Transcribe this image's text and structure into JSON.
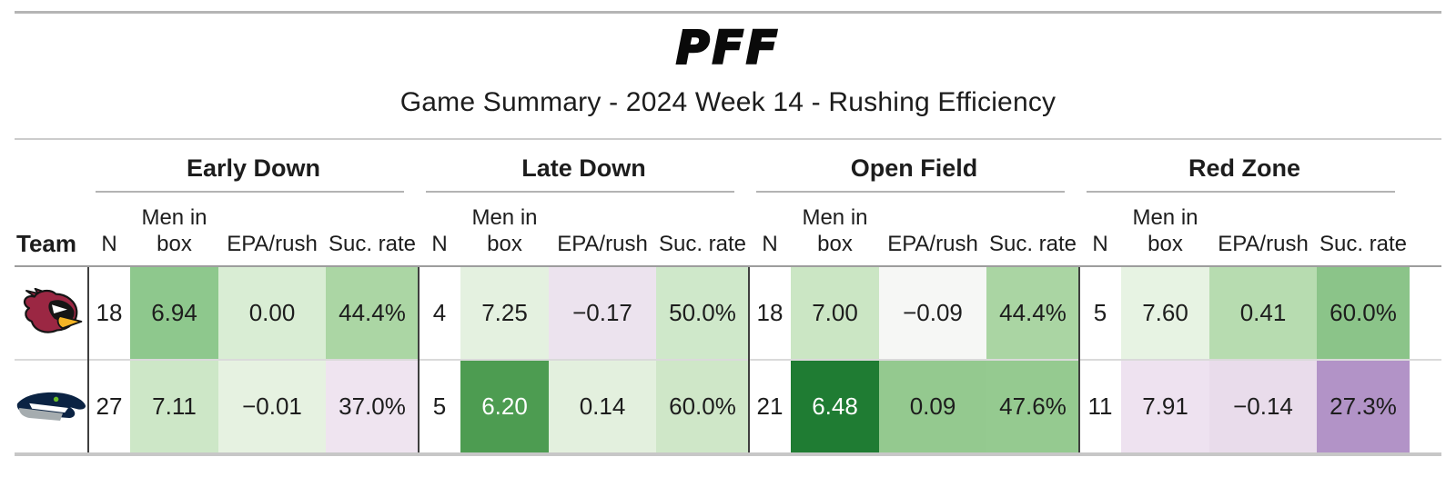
{
  "header": {
    "logo_text": "PFF",
    "title": "Game Summary - 2024 Week 14 - Rushing Efficiency"
  },
  "table": {
    "team_col_label": "Team",
    "groups": [
      {
        "label": "Early Down"
      },
      {
        "label": "Late Down"
      },
      {
        "label": "Open Field"
      },
      {
        "label": "Red Zone"
      }
    ],
    "sub_columns": {
      "n": "N",
      "men_in_box": "Men in box",
      "epa": "EPA/rush",
      "suc": "Suc. rate"
    },
    "rows": [
      {
        "team": "Arizona Cardinals",
        "logo": "cardinals",
        "groups": [
          {
            "n": "18",
            "cells": [
              {
                "v": "6.94",
                "bg": "#8ec88d",
                "fg": "#1d1d1d"
              },
              {
                "v": "0.00",
                "bg": "#d9edd4",
                "fg": "#1d1d1d"
              },
              {
                "v": "44.4%",
                "bg": "#abd6a4",
                "fg": "#1d1d1d"
              }
            ]
          },
          {
            "n": "4",
            "cells": [
              {
                "v": "7.25",
                "bg": "#e4f1e0",
                "fg": "#1d1d1d"
              },
              {
                "v": "−0.17",
                "bg": "#ece3ee",
                "fg": "#1d1d1d"
              },
              {
                "v": "50.0%",
                "bg": "#cfe8ca",
                "fg": "#1d1d1d"
              }
            ]
          },
          {
            "n": "18",
            "cells": [
              {
                "v": "7.00",
                "bg": "#cbe6c4",
                "fg": "#1d1d1d"
              },
              {
                "v": "−0.09",
                "bg": "#f6f7f5",
                "fg": "#1d1d1d"
              },
              {
                "v": "44.4%",
                "bg": "#aad5a3",
                "fg": "#1d1d1d"
              }
            ]
          },
          {
            "n": "5",
            "cells": [
              {
                "v": "7.60",
                "bg": "#e7f3e3",
                "fg": "#1d1d1d"
              },
              {
                "v": "0.41",
                "bg": "#b7dcb0",
                "fg": "#1d1d1d"
              },
              {
                "v": "60.0%",
                "bg": "#8bc489",
                "fg": "#1d1d1d"
              }
            ]
          }
        ]
      },
      {
        "team": "Seattle Seahawks",
        "logo": "seahawks",
        "groups": [
          {
            "n": "27",
            "cells": [
              {
                "v": "7.11",
                "bg": "#cde7c7",
                "fg": "#1d1d1d"
              },
              {
                "v": "−0.01",
                "bg": "#e6f2e1",
                "fg": "#1d1d1d"
              },
              {
                "v": "37.0%",
                "bg": "#efe4f0",
                "fg": "#1d1d1d"
              }
            ]
          },
          {
            "n": "5",
            "cells": [
              {
                "v": "6.20",
                "bg": "#4d9c51",
                "fg": "#ffffff"
              },
              {
                "v": "0.14",
                "bg": "#e3f0de",
                "fg": "#1d1d1d"
              },
              {
                "v": "60.0%",
                "bg": "#cfe7c8",
                "fg": "#1d1d1d"
              }
            ]
          },
          {
            "n": "21",
            "cells": [
              {
                "v": "6.48",
                "bg": "#1f7c33",
                "fg": "#ffffff"
              },
              {
                "v": "0.09",
                "bg": "#94c98f",
                "fg": "#1d1d1d"
              },
              {
                "v": "47.6%",
                "bg": "#95ca90",
                "fg": "#1d1d1d"
              }
            ]
          },
          {
            "n": "11",
            "cells": [
              {
                "v": "7.91",
                "bg": "#eee2f0",
                "fg": "#1d1d1d"
              },
              {
                "v": "−0.14",
                "bg": "#e9dceb",
                "fg": "#1d1d1d"
              },
              {
                "v": "27.3%",
                "bg": "#b293c7",
                "fg": "#1d1d1d"
              }
            ]
          }
        ]
      }
    ]
  },
  "chart_data": {
    "type": "table",
    "title": "Game Summary - 2024 Week 14 - Rushing Efficiency",
    "column_groups": [
      "Early Down",
      "Late Down",
      "Open Field",
      "Red Zone"
    ],
    "columns_per_group": [
      "N",
      "Men in box",
      "EPA/rush",
      "Suc. rate"
    ],
    "rows": [
      {
        "team": "Arizona Cardinals",
        "early_down": {
          "N": 18,
          "men_in_box": 6.94,
          "epa_per_rush": 0.0,
          "success_rate_pct": 44.4
        },
        "late_down": {
          "N": 4,
          "men_in_box": 7.25,
          "epa_per_rush": -0.17,
          "success_rate_pct": 50.0
        },
        "open_field": {
          "N": 18,
          "men_in_box": 7.0,
          "epa_per_rush": -0.09,
          "success_rate_pct": 44.4
        },
        "red_zone": {
          "N": 5,
          "men_in_box": 7.6,
          "epa_per_rush": 0.41,
          "success_rate_pct": 60.0
        }
      },
      {
        "team": "Seattle Seahawks",
        "early_down": {
          "N": 27,
          "men_in_box": 7.11,
          "epa_per_rush": -0.01,
          "success_rate_pct": 37.0
        },
        "late_down": {
          "N": 5,
          "men_in_box": 6.2,
          "epa_per_rush": 0.14,
          "success_rate_pct": 60.0
        },
        "open_field": {
          "N": 21,
          "men_in_box": 6.48,
          "epa_per_rush": 0.09,
          "success_rate_pct": 47.6
        },
        "red_zone": {
          "N": 11,
          "men_in_box": 7.91,
          "epa_per_rush": -0.14,
          "success_rate_pct": 27.3
        }
      }
    ],
    "legend_position": "none",
    "shading_note": "heatmap cells: green = favorable, purple = unfavorable"
  },
  "colors": {
    "green_dark": "#1f7c33",
    "green_mid": "#4d9c51",
    "purple_mid": "#b293c7",
    "rule_gray": "#bdbdbd",
    "text": "#1d1d1d"
  }
}
